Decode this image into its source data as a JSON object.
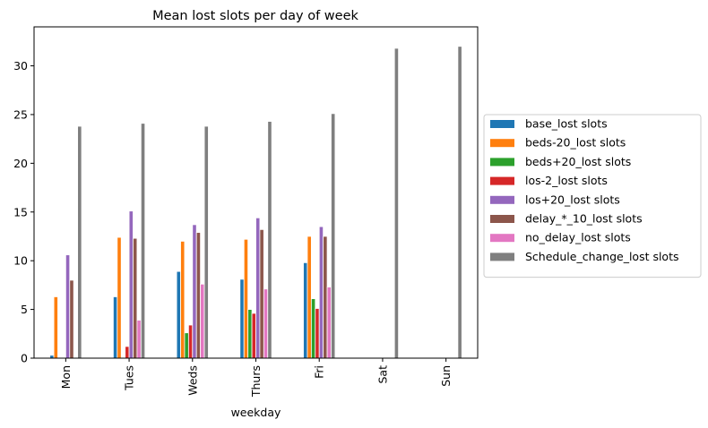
{
  "chart_data": {
    "type": "bar",
    "title": "Mean lost slots per day of week",
    "xlabel": "weekday",
    "ylabel": "",
    "ylim": [
      0,
      34
    ],
    "yticks": [
      0,
      5,
      10,
      15,
      20,
      25,
      30
    ],
    "grid": false,
    "legend_position": "outside-right",
    "categories": [
      "Mon",
      "Tues",
      "Weds",
      "Thurs",
      "Fri",
      "Sat",
      "Sun"
    ],
    "series": [
      {
        "name": "base_lost slots",
        "color": "#1f77b4",
        "values": [
          0.3,
          6.3,
          8.9,
          8.1,
          9.8,
          0,
          0
        ]
      },
      {
        "name": "beds-20_lost slots",
        "color": "#ff7f0e",
        "values": [
          6.3,
          12.4,
          12.0,
          12.2,
          12.5,
          0,
          0
        ]
      },
      {
        "name": "beds+20_lost slots",
        "color": "#2ca02c",
        "values": [
          0,
          0,
          2.6,
          5.0,
          6.1,
          0,
          0
        ]
      },
      {
        "name": "los-2_lost slots",
        "color": "#d62728",
        "values": [
          0,
          1.2,
          3.4,
          4.6,
          5.1,
          0,
          0
        ]
      },
      {
        "name": "los+20_lost slots",
        "color": "#9467bd",
        "values": [
          10.6,
          15.1,
          13.7,
          14.4,
          13.5,
          0,
          0
        ]
      },
      {
        "name": "delay_*_10_lost slots",
        "color": "#8c564b",
        "values": [
          8.0,
          12.3,
          12.9,
          13.2,
          12.5,
          0,
          0
        ]
      },
      {
        "name": "no_delay_lost slots",
        "color": "#e377c2",
        "values": [
          0,
          3.9,
          7.6,
          7.1,
          7.3,
          0,
          0
        ]
      },
      {
        "name": "Schedule_change_lost slots",
        "color": "#7f7f7f",
        "values": [
          23.8,
          24.1,
          23.8,
          24.3,
          25.1,
          31.8,
          32.0
        ]
      }
    ]
  }
}
